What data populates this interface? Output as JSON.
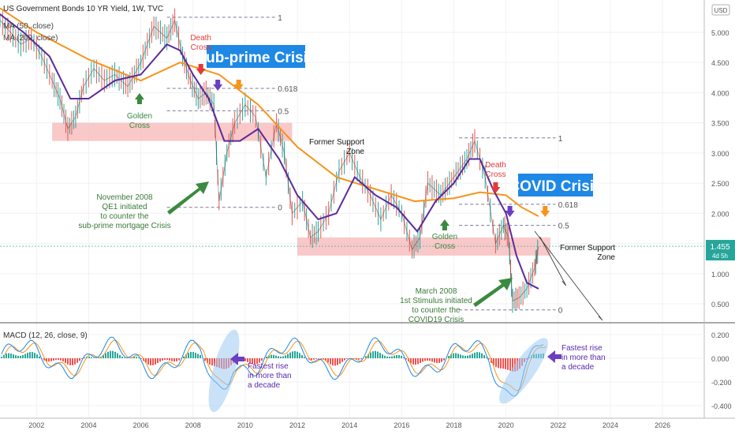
{
  "header": {
    "title": "US Government Bonds 10 YR Yield, 1W, TVC",
    "ma1": "MA (50, close)",
    "ma2": "MA (200, close)",
    "currency": "USD",
    "price": "1.455",
    "countdown": "4d 5h"
  },
  "colors": {
    "candle_up": "#26a69a",
    "candle_down": "#ef5350",
    "ma50": "#5b2a9c",
    "ma200": "#f7931a",
    "zone": "#f7b6b6",
    "green_arrow": "#3a8a3f",
    "red_arrow": "#e23a3a",
    "purple_arrow": "#6a3fc2",
    "orange_arrow": "#f7931a",
    "crisis_label_bg": "#1e88e5",
    "macd_line": "#1e88e5",
    "signal_line": "#f7931a",
    "hist_pos": "#26a69a",
    "hist_neg": "#ef5350"
  },
  "annotations": {
    "subprime": "Sub-prime Crisis",
    "covid": "COVID Crisis",
    "death_cross": [
      "Death",
      "Cross"
    ],
    "golden_cross": [
      "Golden",
      "Cross"
    ],
    "former_support": [
      "Former Support",
      "Zone"
    ],
    "qe1_note": [
      "November 2008",
      "QE1 initiated",
      "to counter the",
      "sub-prime mortgage Crisis"
    ],
    "stimulus_note": [
      "March 2008",
      "1st Stimulus initiated",
      "to counter the",
      "COVID19 Crisis"
    ],
    "fastest_rise": [
      "Fastest rise",
      "in more than",
      "a decade"
    ]
  },
  "macd": {
    "title": "MACD (12, 26, close, 9)",
    "y_ticks": [
      "0.200",
      "0.000",
      "-0.200",
      "-0.400"
    ]
  },
  "chart_data": {
    "type": "line",
    "x_ticks": [
      "2002",
      "2004",
      "2006",
      "2008",
      "2010",
      "2012",
      "2014",
      "2016",
      "2018",
      "2020",
      "2022",
      "2024",
      "2026"
    ],
    "y_ticks": [
      "5.000",
      "4.500",
      "4.000",
      "3.500",
      "3.000",
      "2.500",
      "2.000",
      "1.500",
      "1.000",
      "0.500"
    ],
    "ylim": [
      0.2,
      5.3
    ],
    "xlim": [
      2000.6,
      2027.6
    ],
    "series": [
      {
        "name": "US Government Bonds 10 YR Yield",
        "x": [
          2000.6,
          2001.0,
          2001.4,
          2001.8,
          2002.2,
          2002.6,
          2002.9,
          2003.2,
          2003.5,
          2003.8,
          2004.2,
          2004.6,
          2005.0,
          2005.5,
          2006.0,
          2006.5,
          2007.0,
          2007.3,
          2007.6,
          2007.9,
          2008.2,
          2008.5,
          2008.8,
          2009.0,
          2009.3,
          2009.6,
          2010.0,
          2010.4,
          2010.8,
          2011.2,
          2011.5,
          2011.8,
          2012.2,
          2012.5,
          2012.8,
          2013.2,
          2013.6,
          2014.0,
          2014.4,
          2014.8,
          2015.2,
          2015.6,
          2016.0,
          2016.4,
          2016.7,
          2017.0,
          2017.5,
          2018.0,
          2018.5,
          2018.8,
          2019.2,
          2019.6,
          2019.9,
          2020.1,
          2020.25,
          2020.5,
          2020.8,
          2021.1,
          2021.25
        ],
        "values": [
          5.2,
          5.0,
          4.8,
          4.9,
          4.6,
          4.2,
          3.9,
          3.4,
          3.6,
          4.1,
          4.4,
          4.2,
          4.3,
          4.1,
          4.5,
          5.1,
          4.9,
          5.2,
          4.6,
          4.2,
          3.9,
          4.0,
          3.8,
          2.2,
          3.0,
          3.5,
          3.8,
          3.6,
          2.6,
          3.5,
          3.0,
          2.0,
          2.2,
          1.6,
          1.7,
          2.0,
          2.7,
          3.0,
          2.6,
          2.3,
          1.9,
          2.3,
          2.0,
          1.4,
          1.6,
          2.5,
          2.3,
          2.6,
          2.9,
          3.2,
          2.6,
          1.5,
          1.8,
          1.6,
          0.55,
          0.6,
          0.75,
          1.1,
          1.455
        ]
      },
      {
        "name": "MA (50, close)",
        "x": [
          2000.6,
          2001.5,
          2002.5,
          2003.3,
          2004.0,
          2005.0,
          2006.0,
          2007.0,
          2007.5,
          2008.0,
          2008.6,
          2009.2,
          2009.8,
          2010.5,
          2011.3,
          2012.0,
          2012.8,
          2013.5,
          2014.2,
          2015.0,
          2015.8,
          2016.6,
          2017.3,
          2018.0,
          2018.6,
          2019.0,
          2019.5,
          2020.0,
          2020.4,
          2020.8,
          2021.25
        ],
        "values": [
          5.3,
          5.0,
          4.6,
          3.9,
          3.9,
          4.2,
          4.3,
          4.8,
          4.7,
          4.3,
          3.9,
          3.2,
          3.2,
          3.4,
          2.9,
          2.3,
          1.9,
          2.0,
          2.6,
          2.3,
          2.1,
          1.7,
          2.2,
          2.5,
          2.9,
          2.9,
          2.4,
          2.0,
          1.3,
          0.85,
          0.75
        ]
      },
      {
        "name": "MA (200, close)",
        "x": [
          2000.6,
          2002.0,
          2004.0,
          2006.0,
          2007.5,
          2009.0,
          2010.5,
          2012.0,
          2013.5,
          2015.0,
          2016.5,
          2018.0,
          2019.0,
          2020.0,
          2020.6,
          2021.25
        ],
        "values": [
          5.4,
          5.0,
          4.55,
          4.2,
          4.5,
          4.3,
          3.8,
          3.1,
          2.6,
          2.4,
          2.2,
          2.25,
          2.35,
          2.3,
          2.1,
          1.95
        ]
      }
    ],
    "levels_2007": [
      {
        "label": "1",
        "value": 5.25
      },
      {
        "label": "0.618",
        "value": 4.07
      },
      {
        "label": "0.5",
        "value": 3.7
      },
      {
        "label": "0",
        "value": 2.1
      }
    ],
    "levels_2018": [
      {
        "label": "1",
        "value": 3.25
      },
      {
        "label": "0.618",
        "value": 2.15
      },
      {
        "label": "0.5",
        "value": 1.8
      },
      {
        "label": "0",
        "value": 0.4
      }
    ],
    "support_zones": [
      {
        "x_from": 2002.6,
        "x_to": 2011.8,
        "y_from": 3.2,
        "y_to": 3.5
      },
      {
        "x_from": 2012.0,
        "x_to": 2021.7,
        "y_from": 1.3,
        "y_to": 1.6
      }
    ]
  }
}
